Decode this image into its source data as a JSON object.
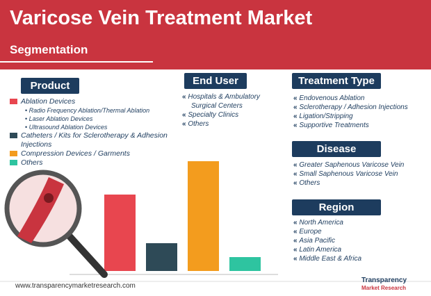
{
  "header": {
    "title": "Varicose Vein Treatment Market",
    "subtitle": "Segmentation"
  },
  "product": {
    "heading": "Product",
    "items": [
      {
        "label": "Ablation Devices",
        "subitems": [
          "Radio Frequency Ablation/Thermal Ablation",
          "Laser Ablation Devices",
          "Ultrasound Ablation Devices"
        ]
      },
      {
        "label": "Catheters / Kits for Sclerotherapy & Adhesion Injections",
        "subitems": []
      },
      {
        "label": "Compression Devices / Garments",
        "subitems": []
      },
      {
        "label": "Others",
        "subitems": []
      }
    ]
  },
  "end_user": {
    "heading": "End User",
    "items": [
      "Hospitals & Ambulatory Surgical Centers",
      "Specialty Clinics",
      "Others"
    ]
  },
  "treatment_type": {
    "heading": "Treatment Type",
    "items": [
      "Endovenous Ablation",
      "Sclerotherapy / Adhesion Injections",
      "Ligation/Stripping",
      "Supportive Treatments"
    ]
  },
  "disease": {
    "heading": "Disease",
    "items": [
      "Greater Saphenous Varicose Vein",
      "Small Saphenous Varicose Vein",
      "Others"
    ]
  },
  "region": {
    "heading": "Region",
    "items": [
      "North America",
      "Europe",
      "Asia Pacific",
      "Latin America",
      "Middle East & Africa"
    ]
  },
  "footer": {
    "url": "www.transparencymarketresearch.com",
    "logo": "Transparency",
    "logo_sub": "Market Research"
  }
}
